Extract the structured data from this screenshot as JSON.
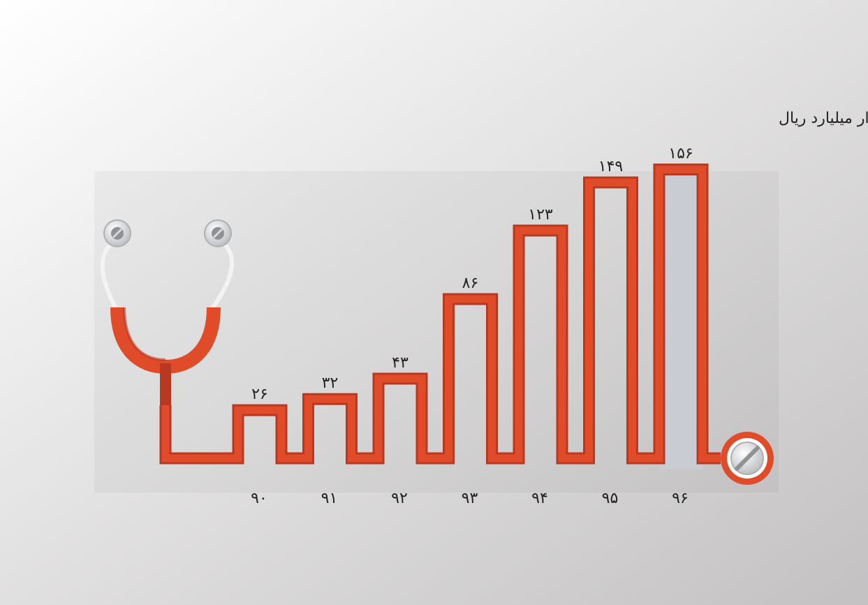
{
  "chart_data": {
    "type": "bar",
    "title": "",
    "unit_label": "هزار میلیارد ریال",
    "categories": [
      "۹۰",
      "۹۱",
      "۹۲",
      "۹۳",
      "۹۴",
      "۹۵",
      "۹۶"
    ],
    "values": [
      26,
      32,
      43,
      86,
      123,
      149,
      156
    ],
    "value_labels": [
      "۲۶",
      "۳۲",
      "۴۳",
      "۸۶",
      "۱۲۳",
      "۱۴۹",
      "۱۵۶"
    ],
    "xlabel": "",
    "ylabel": "",
    "ylim": [
      0,
      160
    ],
    "grid": false,
    "legend": "none",
    "highlighted_category": "۹۶"
  },
  "colors": {
    "tube": "#e04b2a",
    "tube_dark": "#b8391f",
    "highlight_fill": "#c9cdd3",
    "metal": "#cfd0d2",
    "background_light": "#ffffff",
    "background_dark": "#c3c1c2"
  },
  "icons": {
    "stethoscope": "stethoscope-icon",
    "chestpiece": "chestpiece-icon"
  }
}
